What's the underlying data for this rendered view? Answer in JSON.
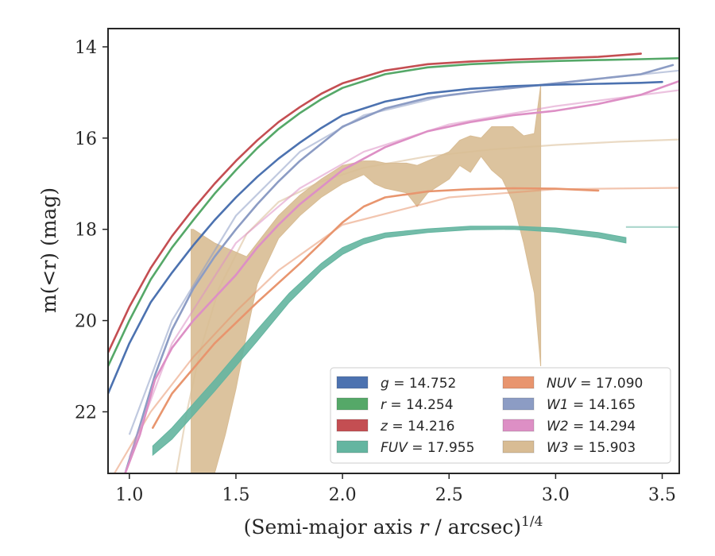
{
  "chart_data": {
    "type": "line",
    "title": "",
    "xlabel_main": "(Semi-major axis ",
    "xlabel_var": "r",
    "xlabel_tail": " / arcsec)",
    "xlabel_sup": "1/4",
    "ylabel_main": "m(<r) (mag)",
    "xlim": [
      0.9,
      3.58
    ],
    "ylim": [
      23.35,
      13.6
    ],
    "y_inverted": true,
    "xticks": [
      1.0,
      1.5,
      2.0,
      2.5,
      3.0,
      3.5
    ],
    "xtick_labels": [
      "1.0",
      "1.5",
      "2.0",
      "2.5",
      "3.0",
      "3.5"
    ],
    "yticks": [
      14,
      16,
      18,
      20,
      22
    ],
    "ytick_labels": [
      "14",
      "16",
      "18",
      "20",
      "22"
    ],
    "grid": false,
    "legend_position": "lower-right",
    "legend_columns": 2,
    "series": [
      {
        "key": "g",
        "name": "g = 14.752",
        "legend_var": "g",
        "legend_val": "= 14.752",
        "color": "#4c72b0",
        "x": [
          0.9,
          1.0,
          1.1,
          1.2,
          1.3,
          1.4,
          1.5,
          1.6,
          1.7,
          1.8,
          1.9,
          2.0,
          2.2,
          2.4,
          2.6,
          2.8,
          3.0,
          3.2,
          3.4,
          3.5
        ],
        "y": [
          21.6,
          20.5,
          19.6,
          18.95,
          18.35,
          17.8,
          17.3,
          16.85,
          16.45,
          16.1,
          15.78,
          15.5,
          15.2,
          15.02,
          14.92,
          14.86,
          14.83,
          14.81,
          14.79,
          14.77
        ]
      },
      {
        "key": "r",
        "name": "r = 14.254",
        "legend_var": "r",
        "legend_val": "= 14.254",
        "color": "#55a868",
        "x": [
          0.9,
          1.0,
          1.1,
          1.2,
          1.3,
          1.4,
          1.5,
          1.6,
          1.7,
          1.8,
          1.9,
          2.0,
          2.2,
          2.4,
          2.6,
          2.8,
          3.0,
          3.2,
          3.4,
          3.58
        ],
        "y": [
          21.0,
          20.0,
          19.1,
          18.4,
          17.8,
          17.22,
          16.7,
          16.22,
          15.8,
          15.45,
          15.15,
          14.9,
          14.6,
          14.45,
          14.38,
          14.34,
          14.31,
          14.29,
          14.27,
          14.25
        ]
      },
      {
        "key": "z",
        "name": "z = 14.216",
        "legend_var": "z",
        "legend_val": "= 14.216",
        "color": "#c44e52",
        "x": [
          0.9,
          1.0,
          1.1,
          1.2,
          1.3,
          1.4,
          1.5,
          1.6,
          1.7,
          1.8,
          1.9,
          2.0,
          2.2,
          2.4,
          2.6,
          2.8,
          3.0,
          3.2,
          3.4
        ],
        "y": [
          20.7,
          19.7,
          18.85,
          18.15,
          17.55,
          17.0,
          16.5,
          16.05,
          15.65,
          15.32,
          15.03,
          14.8,
          14.52,
          14.38,
          14.32,
          14.28,
          14.25,
          14.22,
          14.15
        ]
      },
      {
        "key": "FUV",
        "name": "FUV = 17.955",
        "legend_var": "FUV",
        "legend_val": "= 17.955",
        "color": "#64b5a0",
        "band": true,
        "x": [
          1.11,
          1.2,
          1.4,
          1.6,
          1.75,
          1.9,
          2.0,
          2.1,
          2.2,
          2.4,
          2.6,
          2.8,
          3.0,
          3.2,
          3.33
        ],
        "y_lo": [
          22.75,
          22.35,
          21.3,
          20.2,
          19.4,
          18.75,
          18.4,
          18.2,
          18.08,
          17.99,
          17.93,
          17.93,
          17.97,
          18.07,
          18.18
        ],
        "y_hi": [
          22.95,
          22.6,
          21.55,
          20.45,
          19.6,
          18.9,
          18.55,
          18.32,
          18.18,
          18.07,
          18.01,
          18.0,
          18.06,
          18.18,
          18.3
        ],
        "ext_x": [
          3.33,
          3.58
        ],
        "ext_y": [
          17.95,
          17.95
        ]
      },
      {
        "key": "NUV",
        "name": "NUV = 17.090",
        "legend_var": "NUV",
        "legend_val": "= 17.090",
        "color": "#e8956e",
        "x": [
          1.11,
          1.2,
          1.4,
          1.6,
          1.8,
          1.9,
          2.0,
          2.1,
          2.2,
          2.4,
          2.6,
          2.8,
          3.0,
          3.2
        ],
        "y": [
          22.35,
          21.6,
          20.5,
          19.6,
          18.75,
          18.3,
          17.85,
          17.5,
          17.3,
          17.17,
          17.12,
          17.1,
          17.11,
          17.15
        ],
        "ext_x": [
          0.93,
          1.1,
          1.3,
          1.5,
          1.7,
          2.0,
          2.5,
          3.0,
          3.58
        ],
        "ext_y": [
          23.35,
          22.0,
          20.8,
          19.8,
          18.9,
          17.9,
          17.3,
          17.12,
          17.09
        ]
      },
      {
        "key": "W1",
        "name": "W1 = 14.165",
        "legend_var": "W1",
        "legend_val": "= 14.165",
        "color": "#8c9cc4",
        "x": [
          0.98,
          1.05,
          1.12,
          1.2,
          1.3,
          1.4,
          1.5,
          1.6,
          1.7,
          1.8,
          2.0,
          2.2,
          2.4,
          2.6,
          2.8,
          3.0,
          3.2,
          3.4,
          3.55
        ],
        "y": [
          23.35,
          22.3,
          21.2,
          20.2,
          19.3,
          18.6,
          18.0,
          17.45,
          16.95,
          16.5,
          15.75,
          15.35,
          15.12,
          15.0,
          14.9,
          14.8,
          14.7,
          14.6,
          14.4
        ],
        "ext_x": [
          1.0,
          1.2,
          1.5,
          1.8,
          2.1,
          2.5,
          3.0,
          3.58
        ],
        "ext_y": [
          22.5,
          20.0,
          17.7,
          16.3,
          15.5,
          15.05,
          14.8,
          14.52
        ]
      },
      {
        "key": "W2",
        "name": "W2 = 14.294",
        "legend_var": "W2",
        "legend_val": "= 14.294",
        "color": "#dd8fc5",
        "x": [
          0.98,
          1.05,
          1.12,
          1.2,
          1.3,
          1.4,
          1.5,
          1.6,
          1.7,
          1.8,
          2.0,
          2.2,
          2.4,
          2.6,
          2.8,
          3.0,
          3.2,
          3.4,
          3.58
        ],
        "y": [
          23.35,
          22.5,
          21.3,
          20.6,
          20.0,
          19.5,
          19.0,
          18.4,
          17.9,
          17.45,
          16.7,
          16.2,
          15.85,
          15.65,
          15.5,
          15.4,
          15.25,
          15.05,
          14.75
        ],
        "ext_x": [
          1.0,
          1.2,
          1.5,
          1.8,
          2.1,
          2.5,
          3.0,
          3.58
        ],
        "ext_y": [
          23.0,
          20.5,
          18.3,
          17.1,
          16.3,
          15.7,
          15.3,
          14.95
        ]
      },
      {
        "key": "W3",
        "name": "W3 = 15.903",
        "legend_var": "W3",
        "legend_val": "= 15.903",
        "color": "#d8bc94",
        "band": true,
        "x": [
          1.29,
          1.3,
          1.4,
          1.45,
          1.5,
          1.55,
          1.6,
          1.7,
          1.8,
          1.9,
          2.0,
          2.1,
          2.15,
          2.2,
          2.3,
          2.35,
          2.4,
          2.5,
          2.55,
          2.6,
          2.65,
          2.7,
          2.75,
          2.8,
          2.85,
          2.9,
          2.93
        ],
        "y_lo": [
          23.35,
          23.35,
          23.35,
          22.5,
          21.5,
          20.3,
          19.2,
          18.2,
          17.7,
          17.3,
          17.0,
          16.8,
          17.0,
          17.1,
          17.2,
          17.5,
          17.2,
          16.9,
          16.6,
          16.75,
          16.4,
          16.7,
          16.9,
          17.4,
          18.3,
          19.4,
          21.0
        ],
        "y_hi": [
          18.0,
          18.0,
          18.3,
          18.4,
          18.5,
          18.6,
          18.3,
          17.7,
          17.25,
          16.9,
          16.6,
          16.5,
          16.5,
          16.55,
          16.55,
          16.6,
          16.5,
          16.3,
          16.05,
          15.95,
          16.0,
          15.75,
          15.75,
          15.75,
          15.95,
          15.9,
          14.85
        ],
        "ext_x": [
          1.22,
          1.27,
          1.33,
          1.42,
          1.55,
          1.7,
          1.9,
          2.1,
          2.4,
          2.7,
          3.0,
          3.3,
          3.58
        ],
        "ext_y": [
          23.35,
          22.0,
          20.7,
          19.3,
          18.1,
          17.4,
          16.95,
          16.65,
          16.4,
          16.25,
          16.15,
          16.08,
          16.03
        ]
      }
    ]
  }
}
